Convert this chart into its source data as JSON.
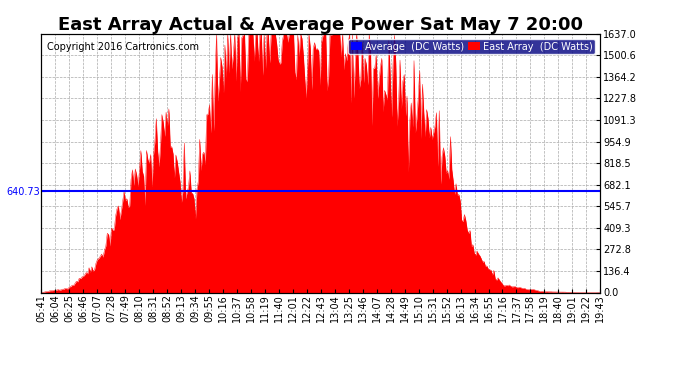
{
  "title": "East Array Actual & Average Power Sat May 7 20:00",
  "copyright": "Copyright 2016 Cartronics.com",
  "legend_labels": [
    "Average  (DC Watts)",
    "East Array  (DC Watts)"
  ],
  "legend_colors": [
    "blue",
    "red"
  ],
  "average_value": 640.73,
  "ymax": 1637.0,
  "ymin": 0.0,
  "yticks": [
    0.0,
    136.4,
    272.8,
    409.3,
    545.7,
    682.1,
    818.5,
    954.9,
    1091.3,
    1227.8,
    1364.2,
    1500.6,
    1637.0
  ],
  "fill_color": "red",
  "line_color": "red",
  "avg_line_color": "blue",
  "bg_color": "white",
  "plot_bg_color": "white",
  "grid_color": "#aaaaaa",
  "x_times": [
    "05:41",
    "06:04",
    "06:25",
    "06:46",
    "07:07",
    "07:28",
    "07:49",
    "08:10",
    "08:31",
    "08:52",
    "09:13",
    "09:34",
    "09:55",
    "10:16",
    "10:37",
    "10:58",
    "11:19",
    "11:40",
    "12:01",
    "12:22",
    "12:43",
    "13:04",
    "13:25",
    "13:46",
    "14:07",
    "14:28",
    "14:49",
    "15:10",
    "15:31",
    "15:52",
    "16:13",
    "16:34",
    "16:55",
    "17:16",
    "17:37",
    "17:58",
    "18:19",
    "18:40",
    "19:01",
    "19:22",
    "19:43"
  ],
  "title_fontsize": 13,
  "tick_fontsize": 7,
  "copyright_fontsize": 7
}
